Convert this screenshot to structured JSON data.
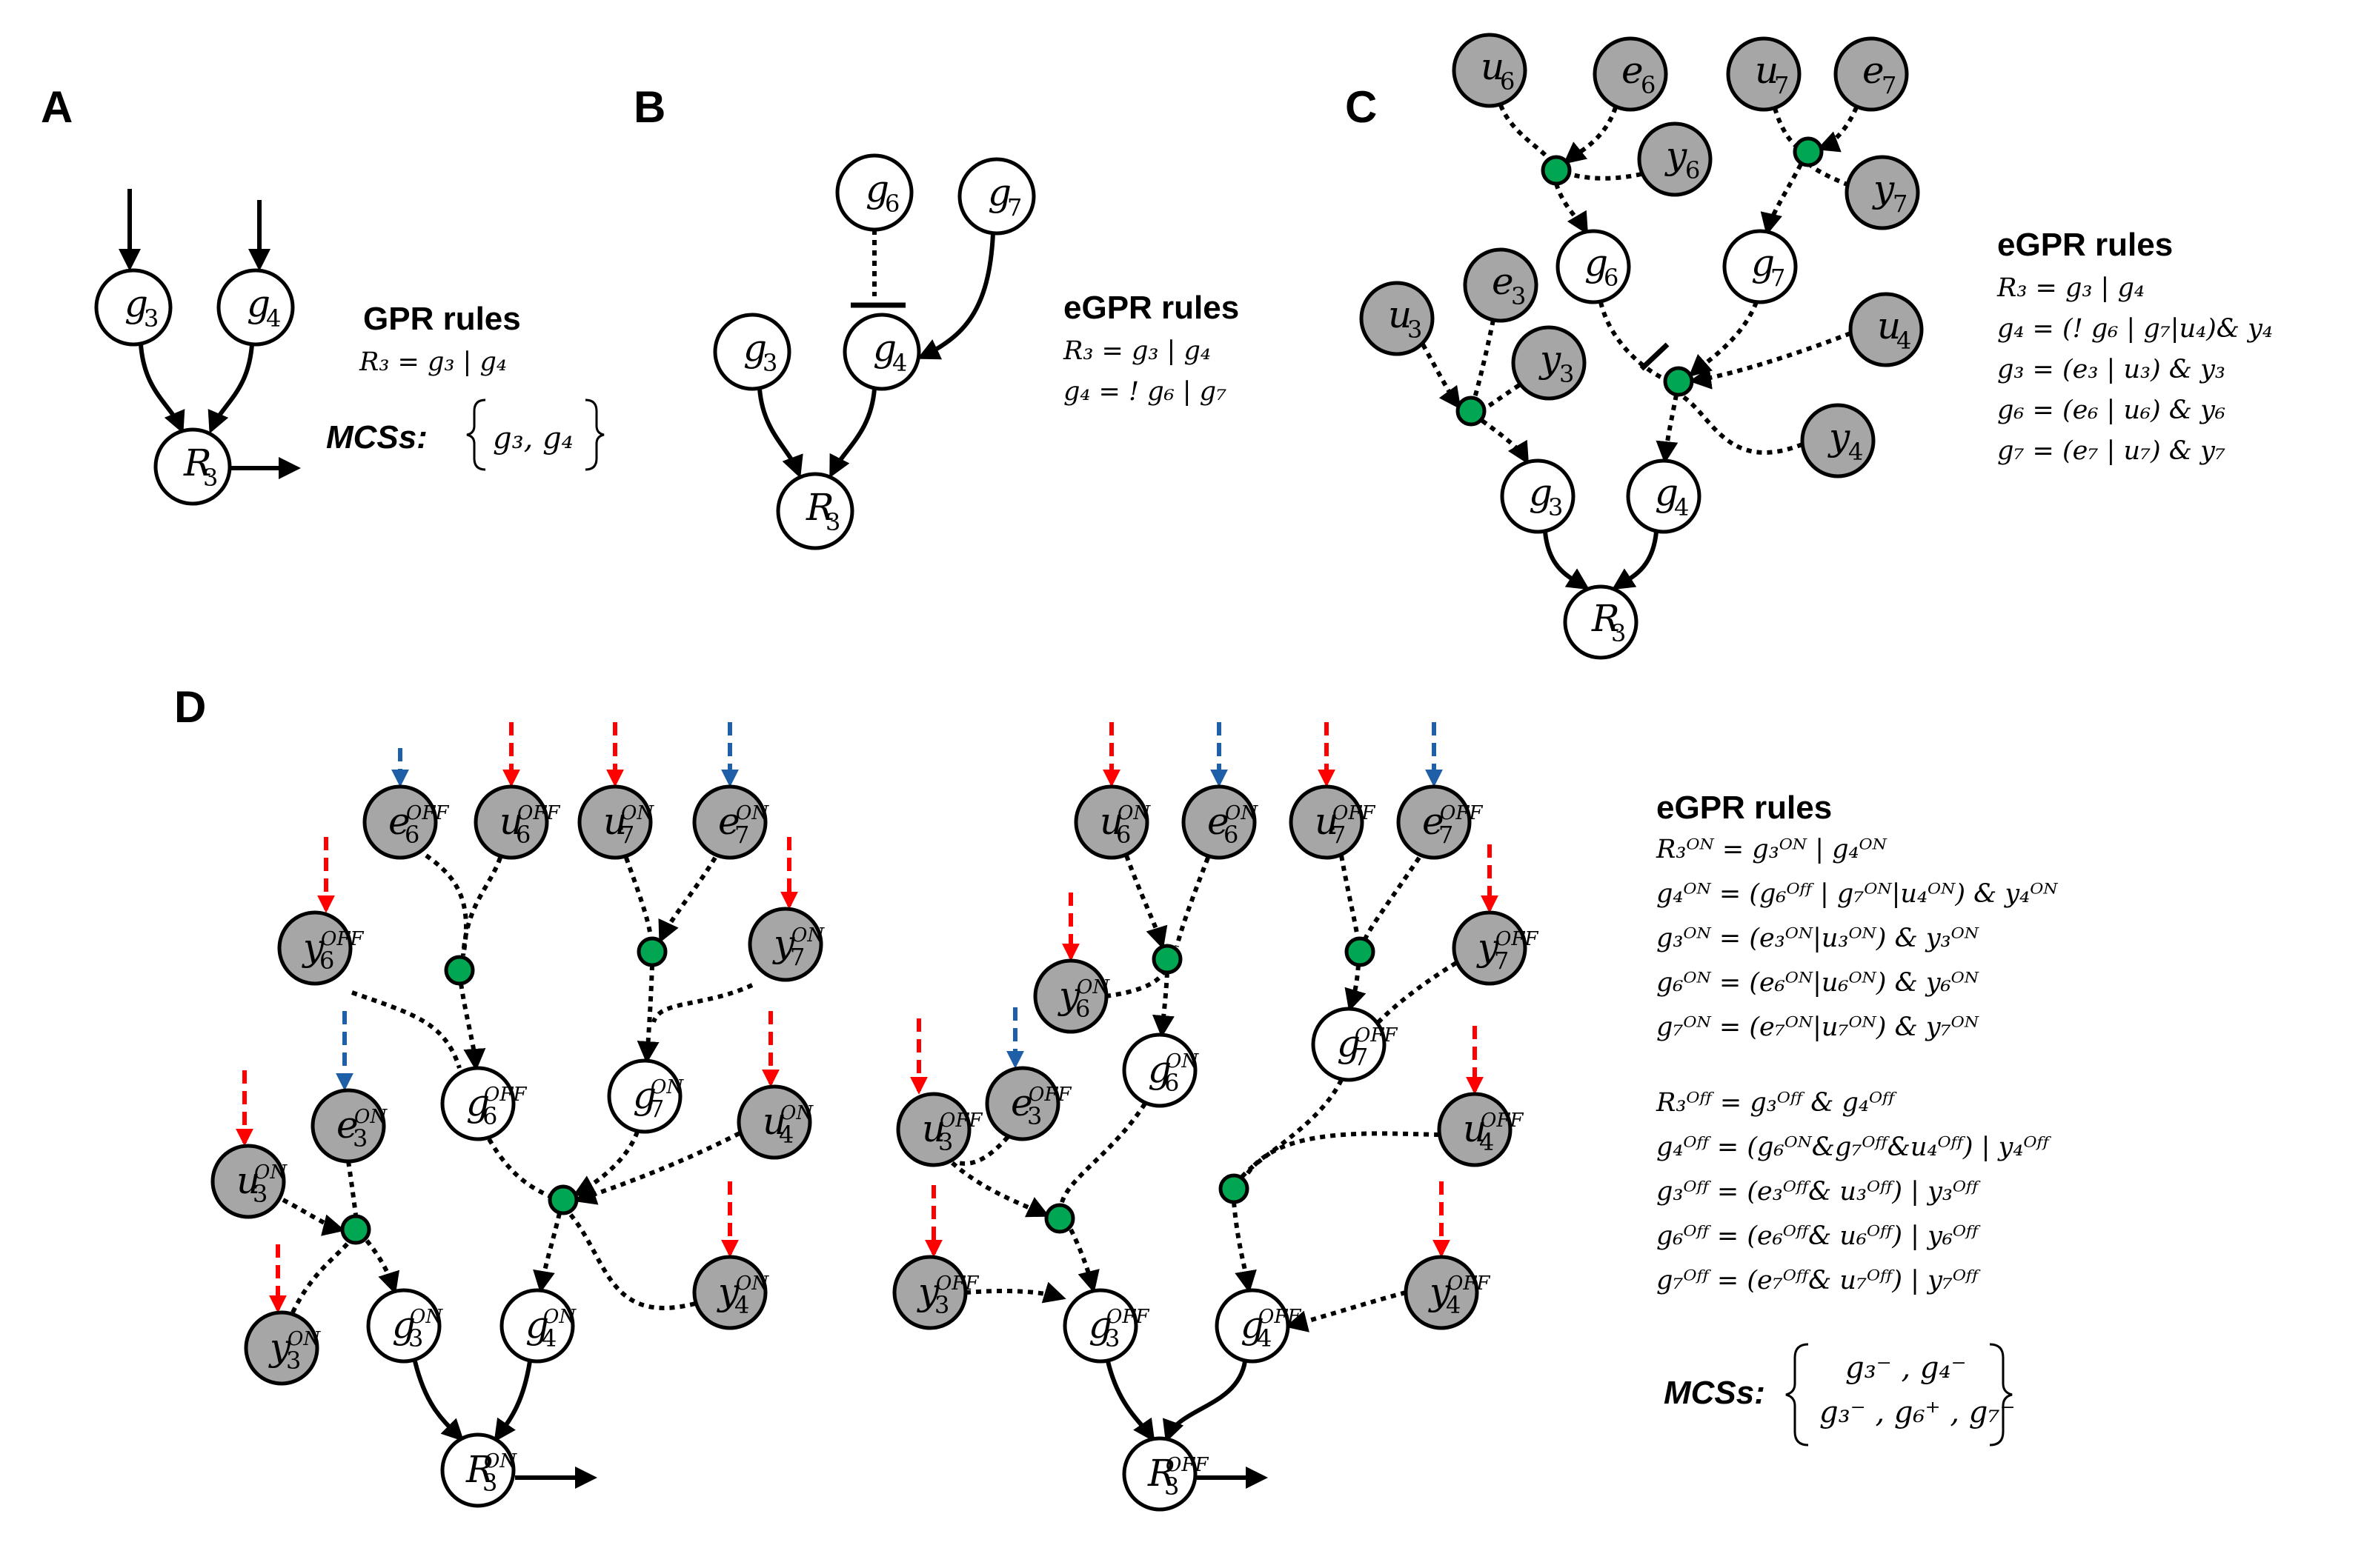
{
  "panels": {
    "A": {
      "label": "A",
      "nodes": {
        "g3": {
          "base": "g",
          "sub": "3",
          "sup": ""
        },
        "g4": {
          "base": "g",
          "sub": "4",
          "sup": ""
        },
        "R3": {
          "base": "R",
          "sub": "3",
          "sup": ""
        }
      },
      "rules_title": "GPR rules",
      "rules": [
        "R₃ = g₃ | g₄"
      ],
      "mcs_title": "MCSs:",
      "mcs_sets": [
        "g₃, g₄"
      ]
    },
    "B": {
      "label": "B",
      "nodes": {
        "g6": {
          "base": "g",
          "sub": "6",
          "sup": ""
        },
        "g7": {
          "base": "g",
          "sub": "7",
          "sup": ""
        },
        "g3": {
          "base": "g",
          "sub": "3",
          "sup": ""
        },
        "g4": {
          "base": "g",
          "sub": "4",
          "sup": ""
        },
        "R3": {
          "base": "R",
          "sub": "3",
          "sup": ""
        }
      },
      "rules_title": "eGPR rules",
      "rules": [
        "R₃ = g₃ | g₄",
        "g₄ = ! g₆ | g₇"
      ]
    },
    "C": {
      "label": "C",
      "nodes": {
        "u6": {
          "base": "u",
          "sub": "6",
          "sup": ""
        },
        "e6": {
          "base": "e",
          "sub": "6",
          "sup": ""
        },
        "u7": {
          "base": "u",
          "sub": "7",
          "sup": ""
        },
        "e7": {
          "base": "e",
          "sub": "7",
          "sup": ""
        },
        "y6": {
          "base": "y",
          "sub": "6",
          "sup": ""
        },
        "y7": {
          "base": "y",
          "sub": "7",
          "sup": ""
        },
        "g6": {
          "base": "g",
          "sub": "6",
          "sup": ""
        },
        "g7": {
          "base": "g",
          "sub": "7",
          "sup": ""
        },
        "u3": {
          "base": "u",
          "sub": "3",
          "sup": ""
        },
        "e3": {
          "base": "e",
          "sub": "3",
          "sup": ""
        },
        "y3": {
          "base": "y",
          "sub": "3",
          "sup": ""
        },
        "u4": {
          "base": "u",
          "sub": "4",
          "sup": ""
        },
        "y4": {
          "base": "y",
          "sub": "4",
          "sup": ""
        },
        "g3": {
          "base": "g",
          "sub": "3",
          "sup": ""
        },
        "g4": {
          "base": "g",
          "sub": "4",
          "sup": ""
        },
        "R3": {
          "base": "R",
          "sub": "3",
          "sup": ""
        }
      },
      "rules_title": "eGPR rules",
      "rules": [
        "R₃ = g₃ | g₄",
        "g₄ = (! g₆ | g₇|u₄)& y₄",
        "g₃ = (e₃ | u₃) & y₃",
        "g₆ = (e₆ | u₆) & y₆",
        "g₇ = (e₇ | u₇) & y₇"
      ]
    },
    "D": {
      "label": "D",
      "left_nodes": {
        "e6": {
          "base": "e",
          "sub": "6",
          "sup": "OFF"
        },
        "u6": {
          "base": "u",
          "sub": "6",
          "sup": "OFF"
        },
        "u7": {
          "base": "u",
          "sub": "7",
          "sup": "ON"
        },
        "e7": {
          "base": "e",
          "sub": "7",
          "sup": "ON"
        },
        "y6": {
          "base": "y",
          "sub": "6",
          "sup": "OFF"
        },
        "y7": {
          "base": "y",
          "sub": "7",
          "sup": "ON"
        },
        "e3": {
          "base": "e",
          "sub": "3",
          "sup": "ON"
        },
        "g6": {
          "base": "g",
          "sub": "6",
          "sup": "OFF"
        },
        "g7": {
          "base": "g",
          "sub": "7",
          "sup": "ON"
        },
        "u4": {
          "base": "u",
          "sub": "4",
          "sup": "ON"
        },
        "u3": {
          "base": "u",
          "sub": "3",
          "sup": "ON"
        },
        "y3": {
          "base": "y",
          "sub": "3",
          "sup": "ON"
        },
        "g3": {
          "base": "g",
          "sub": "3",
          "sup": "ON"
        },
        "g4": {
          "base": "g",
          "sub": "4",
          "sup": "ON"
        },
        "y4": {
          "base": "y",
          "sub": "4",
          "sup": "ON"
        },
        "R3": {
          "base": "R",
          "sub": "3",
          "sup": "ON"
        }
      },
      "right_nodes": {
        "u6": {
          "base": "u",
          "sub": "6",
          "sup": "ON"
        },
        "e6": {
          "base": "e",
          "sub": "6",
          "sup": "ON"
        },
        "u7": {
          "base": "u",
          "sub": "7",
          "sup": "OFF"
        },
        "e7": {
          "base": "e",
          "sub": "7",
          "sup": "OFF"
        },
        "y7": {
          "base": "y",
          "sub": "7",
          "sup": "OFF"
        },
        "y6": {
          "base": "y",
          "sub": "6",
          "sup": "ON"
        },
        "u3": {
          "base": "u",
          "sub": "3",
          "sup": "OFF"
        },
        "e3": {
          "base": "e",
          "sub": "3",
          "sup": "OFF"
        },
        "g6": {
          "base": "g",
          "sub": "6",
          "sup": "ON"
        },
        "g7": {
          "base": "g",
          "sub": "7",
          "sup": "OFF"
        },
        "u4": {
          "base": "u",
          "sub": "4",
          "sup": "OFF"
        },
        "y3": {
          "base": "y",
          "sub": "3",
          "sup": "OFF"
        },
        "g3": {
          "base": "g",
          "sub": "3",
          "sup": "OFF"
        },
        "g4": {
          "base": "g",
          "sub": "4",
          "sup": "OFF"
        },
        "y4": {
          "base": "y",
          "sub": "4",
          "sup": "OFF"
        },
        "R3": {
          "base": "R",
          "sub": "3",
          "sup": "OFF"
        }
      },
      "rules_title": "eGPR rules",
      "rules_on": [
        "R₃ᴼᴺ = g₃ᴼᴺ | g₄ᴼᴺ",
        "g₄ᴼᴺ = (g₆ᴼᶠᶠ | g₇ᴼᴺ|u₄ᴼᴺ) & y₄ᴼᴺ",
        "g₃ᴼᴺ = (e₃ᴼᴺ|u₃ᴼᴺ) & y₃ᴼᴺ",
        "g₆ᴼᴺ = (e₆ᴼᴺ|u₆ᴼᴺ) & y₆ᴼᴺ",
        "g₇ᴼᴺ = (e₇ᴼᴺ|u₇ᴼᴺ) & y₇ᴼᴺ"
      ],
      "rules_off": [
        "R₃ᴼᶠᶠ = g₃ᴼᶠᶠ & g₄ᴼᶠᶠ",
        "g₄ᴼᶠᶠ = (g₆ᴼᴺ&g₇ᴼᶠᶠ&u₄ᴼᶠᶠ) | y₄ᴼᶠᶠ",
        "g₃ᴼᶠᶠ = (e₃ᴼᶠᶠ& u₃ᴼᶠᶠ) | y₃ᴼᶠᶠ",
        "g₆ᴼᶠᶠ = (e₆ᴼᶠᶠ& u₆ᴼᶠᶠ) | y₆ᴼᶠᶠ",
        "g₇ᴼᶠᶠ = (e₇ᴼᶠᶠ& u₇ᴼᶠᶠ) | y₇ᴼᶠᶠ"
      ],
      "mcs_title": "MCSs:",
      "mcs_sets": [
        "g₃⁻ , g₄⁻",
        "g₃⁻ , g₆⁺ , g₇⁻"
      ]
    }
  },
  "colors": {
    "gray_node": "#a6a6a6",
    "white_node": "#ffffff",
    "green_junction": "#00a651",
    "red_arrow": "#ff0000",
    "blue_arrow": "#1f5fa8",
    "stroke": "#000000"
  }
}
